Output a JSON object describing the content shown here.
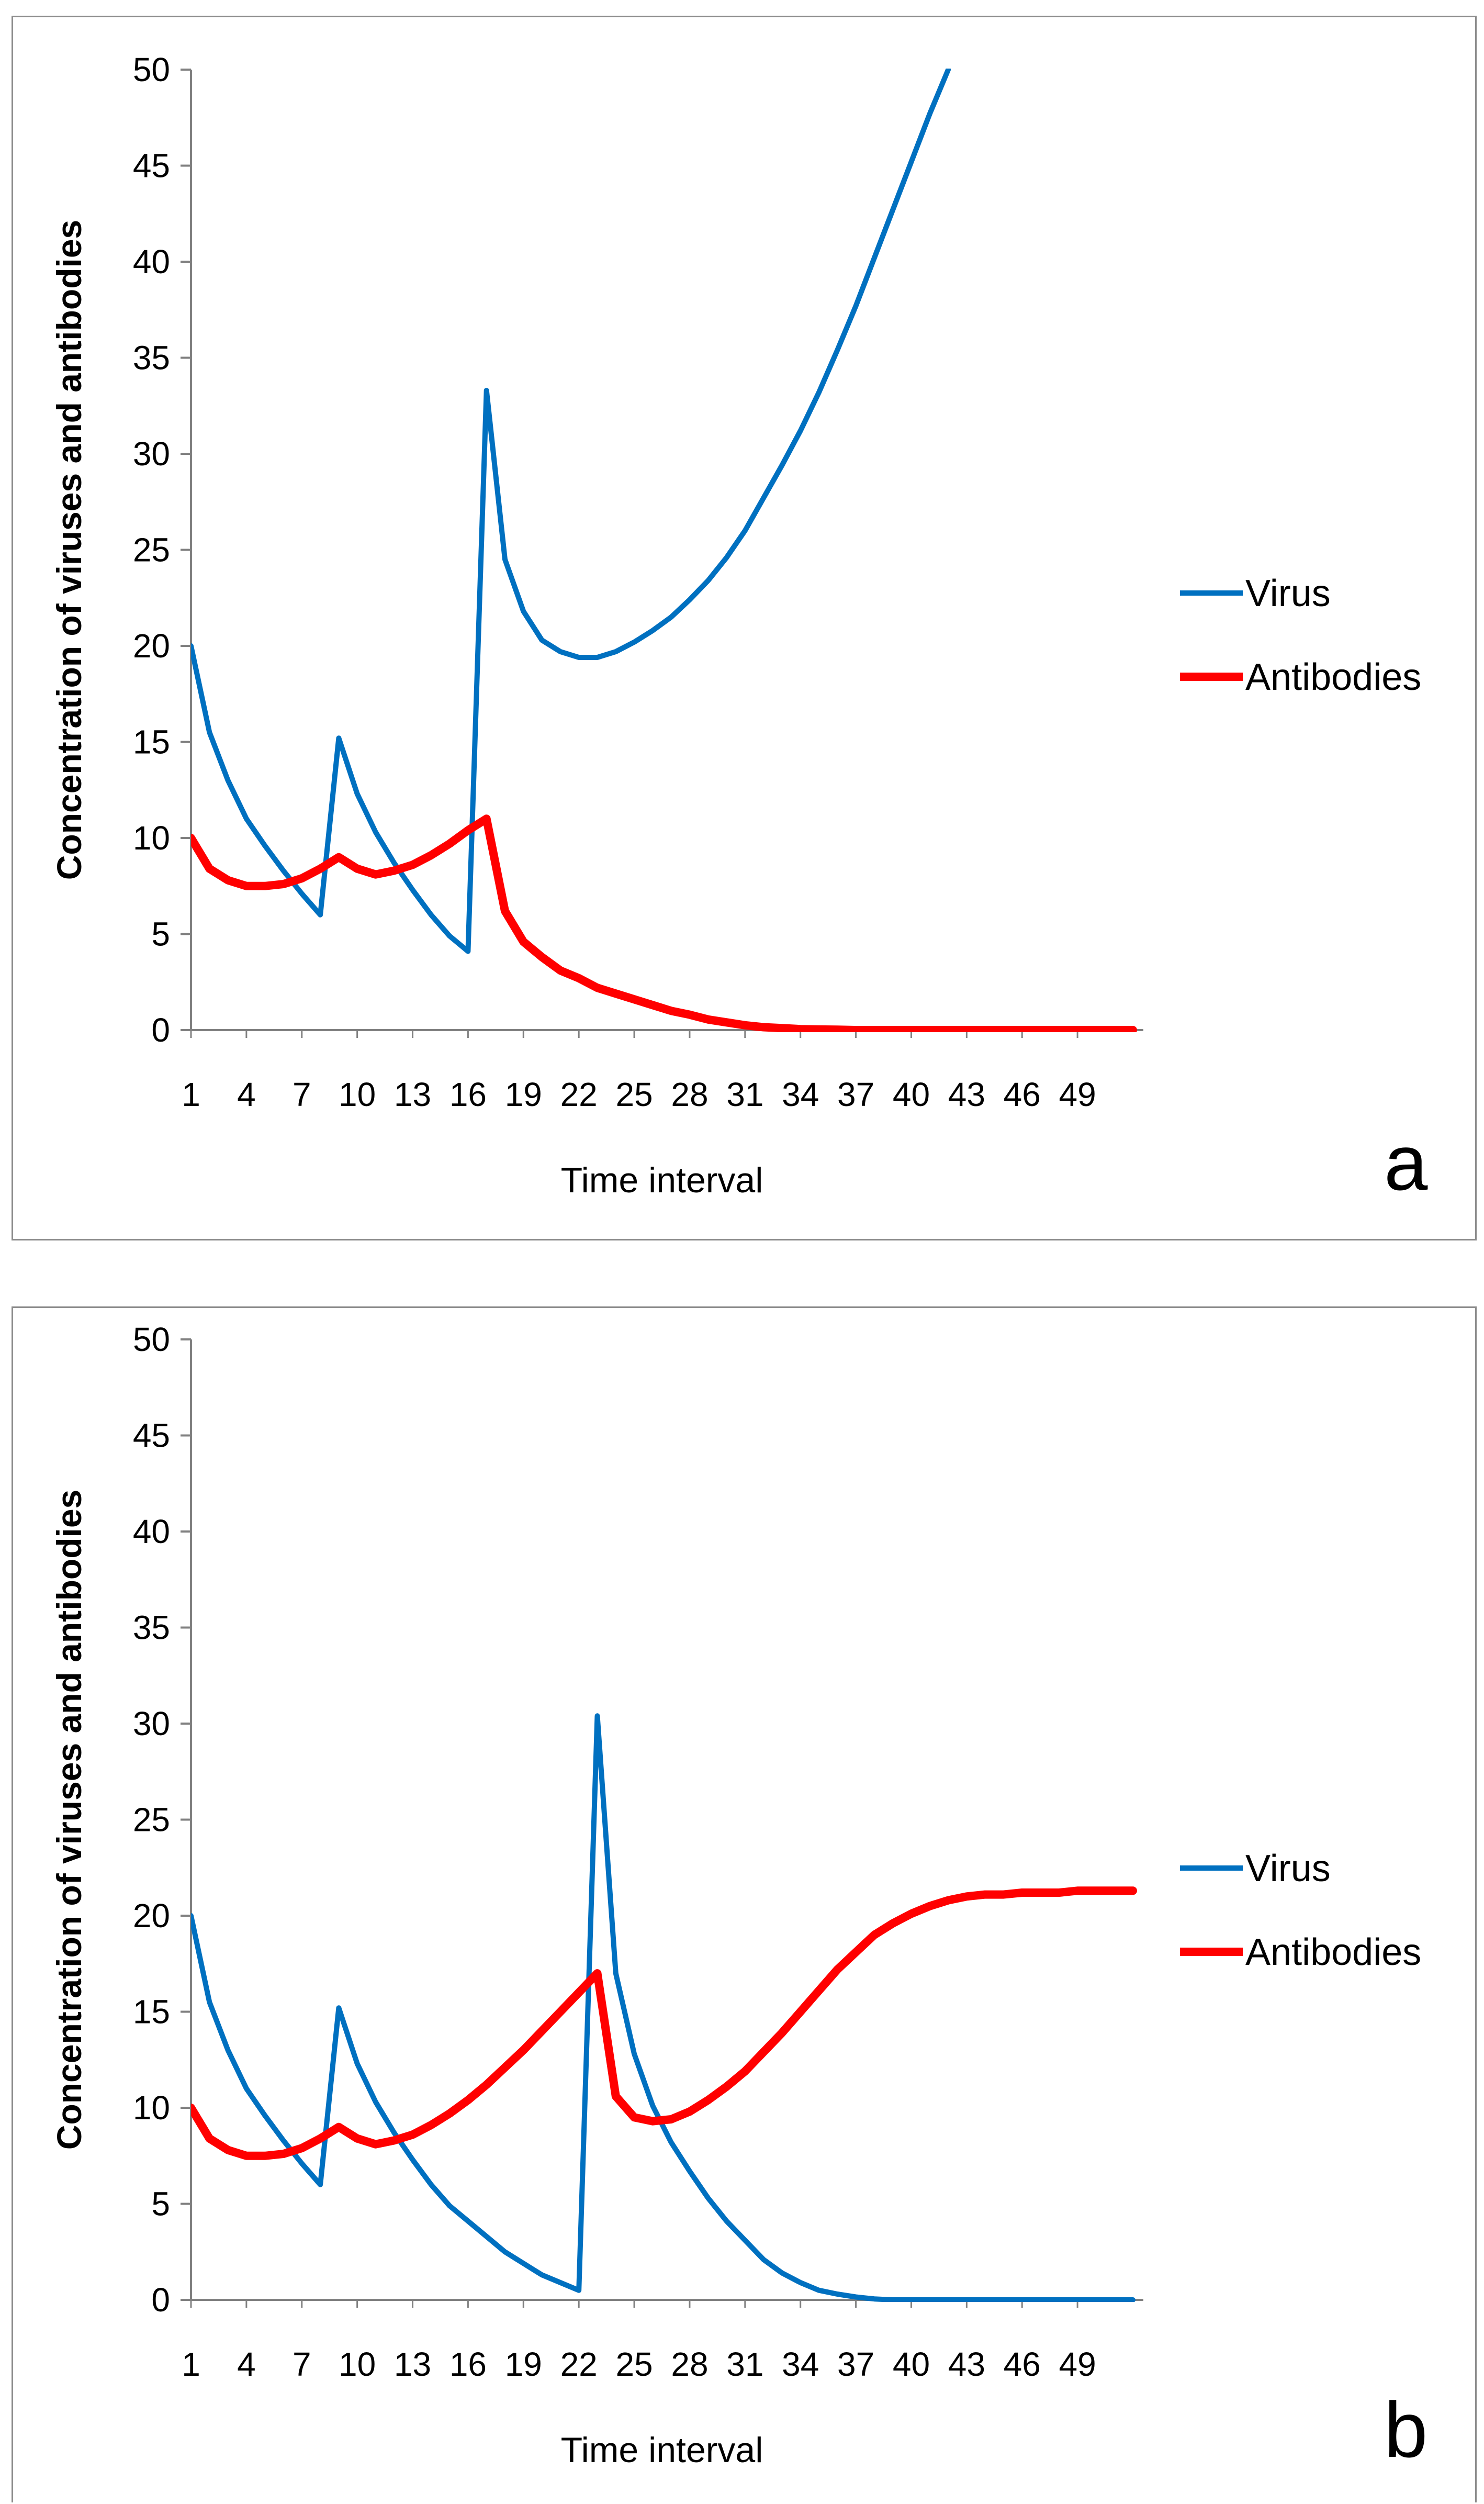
{
  "chart_data": [
    {
      "panel": "a",
      "type": "line",
      "xlabel": "Time interval",
      "ylabel": "Concentration of viruses and antibodies",
      "ylim": [
        0,
        50
      ],
      "yticks": [
        "0",
        "5",
        "10",
        "15",
        "20",
        "25",
        "30",
        "35",
        "40",
        "45",
        "50"
      ],
      "xticks": [
        "1",
        "4",
        "7",
        "10",
        "13",
        "16",
        "19",
        "22",
        "25",
        "28",
        "31",
        "34",
        "37",
        "40",
        "43",
        "46",
        "49"
      ],
      "xlim": [
        1,
        52
      ],
      "grid": false,
      "legend_position": "right",
      "series": [
        {
          "name": "Virus",
          "color": "#0070C0",
          "x": [
            1,
            2,
            3,
            4,
            5,
            6,
            7,
            8,
            9,
            10,
            11,
            12,
            13,
            14,
            15,
            16,
            17,
            18,
            19,
            20,
            21,
            22,
            23,
            24,
            25,
            26,
            27,
            28,
            29,
            30,
            31,
            32,
            33,
            34,
            35,
            36,
            37,
            38,
            39,
            40,
            41,
            42
          ],
          "values": [
            20,
            15.5,
            13,
            11,
            9.6,
            8.3,
            7.1,
            6,
            15.2,
            12.3,
            10.3,
            8.7,
            7.3,
            6,
            4.9,
            4.1,
            33.3,
            24.5,
            21.8,
            20.3,
            19.7,
            19.4,
            19.4,
            19.7,
            20.2,
            20.8,
            21.5,
            22.4,
            23.4,
            24.6,
            26,
            27.7,
            29.4,
            31.2,
            33.2,
            35.4,
            37.7,
            40.2,
            42.7,
            45.2,
            47.7,
            50
          ]
        },
        {
          "name": "Antibodies",
          "color": "#FF0000",
          "x": [
            1,
            2,
            3,
            4,
            5,
            6,
            7,
            8,
            9,
            10,
            11,
            12,
            13,
            14,
            15,
            16,
            17,
            18,
            19,
            20,
            21,
            22,
            23,
            24,
            25,
            26,
            27,
            28,
            29,
            30,
            31,
            32,
            33,
            34,
            35,
            36,
            37,
            38,
            39,
            40,
            41,
            42,
            43,
            44,
            45,
            46,
            47,
            48,
            49,
            50,
            51,
            52
          ],
          "values": [
            10,
            8.4,
            7.8,
            7.5,
            7.5,
            7.6,
            7.9,
            8.4,
            9,
            8.4,
            8.1,
            8.3,
            8.6,
            9.1,
            9.7,
            10.4,
            11,
            6.2,
            4.6,
            3.8,
            3.1,
            2.7,
            2.2,
            1.9,
            1.6,
            1.3,
            1,
            0.8,
            0.55,
            0.4,
            0.25,
            0.15,
            0.1,
            0.05,
            0.03,
            0.02,
            0,
            0,
            0,
            0,
            0,
            0,
            0,
            0,
            0,
            0,
            0,
            0,
            0,
            0,
            0,
            0
          ]
        }
      ]
    },
    {
      "panel": "b",
      "type": "line",
      "xlabel": "Time interval",
      "ylabel": "Concentration of viruses and antibodies",
      "ylim": [
        0,
        50
      ],
      "yticks": [
        "0",
        "5",
        "10",
        "15",
        "20",
        "25",
        "30",
        "35",
        "40",
        "45",
        "50"
      ],
      "xticks": [
        "1",
        "4",
        "7",
        "10",
        "13",
        "16",
        "19",
        "22",
        "25",
        "28",
        "31",
        "34",
        "37",
        "40",
        "43",
        "46",
        "49"
      ],
      "xlim": [
        1,
        52
      ],
      "grid": false,
      "legend_position": "right",
      "series": [
        {
          "name": "Virus",
          "color": "#0070C0",
          "x": [
            1,
            2,
            3,
            4,
            5,
            6,
            7,
            8,
            9,
            10,
            11,
            12,
            13,
            14,
            15,
            16,
            17,
            18,
            19,
            20,
            21,
            22,
            23,
            24,
            25,
            26,
            27,
            28,
            29,
            30,
            31,
            32,
            33,
            34,
            35,
            36,
            37,
            38,
            39,
            40,
            41,
            42,
            43,
            44,
            45,
            46,
            47,
            48,
            49,
            50,
            51,
            52
          ],
          "values": [
            20,
            15.5,
            13,
            11,
            9.6,
            8.3,
            7.1,
            6,
            15.2,
            12.3,
            10.3,
            8.7,
            7.3,
            6,
            4.9,
            4.1,
            3.3,
            2.5,
            1.9,
            1.3,
            0.9,
            0.5,
            30.4,
            17,
            12.8,
            10.1,
            8.2,
            6.7,
            5.3,
            4.1,
            3.1,
            2.1,
            1.4,
            0.9,
            0.5,
            0.3,
            0.15,
            0.05,
            0,
            0,
            0,
            0,
            0,
            0,
            0,
            0,
            0,
            0,
            0,
            0,
            0,
            0
          ]
        },
        {
          "name": "Antibodies",
          "color": "#FF0000",
          "x": [
            1,
            2,
            3,
            4,
            5,
            6,
            7,
            8,
            9,
            10,
            11,
            12,
            13,
            14,
            15,
            16,
            17,
            18,
            19,
            20,
            21,
            22,
            23,
            24,
            25,
            26,
            27,
            28,
            29,
            30,
            31,
            32,
            33,
            34,
            35,
            36,
            37,
            38,
            39,
            40,
            41,
            42,
            43,
            44,
            45,
            46,
            47,
            48,
            49,
            50,
            51,
            52
          ],
          "values": [
            10,
            8.4,
            7.8,
            7.5,
            7.5,
            7.6,
            7.9,
            8.4,
            9,
            8.4,
            8.1,
            8.3,
            8.6,
            9.1,
            9.7,
            10.4,
            11.2,
            12.1,
            13,
            14,
            15,
            16,
            17,
            10.6,
            9.5,
            9.3,
            9.4,
            9.8,
            10.4,
            11.1,
            11.9,
            12.9,
            13.9,
            15,
            16.1,
            17.2,
            18.1,
            19,
            19.6,
            20.1,
            20.5,
            20.8,
            21,
            21.1,
            21.1,
            21.2,
            21.2,
            21.2,
            21.3,
            21.3,
            21.3,
            21.3
          ]
        }
      ]
    }
  ],
  "panel_labels": [
    "a",
    "b"
  ]
}
